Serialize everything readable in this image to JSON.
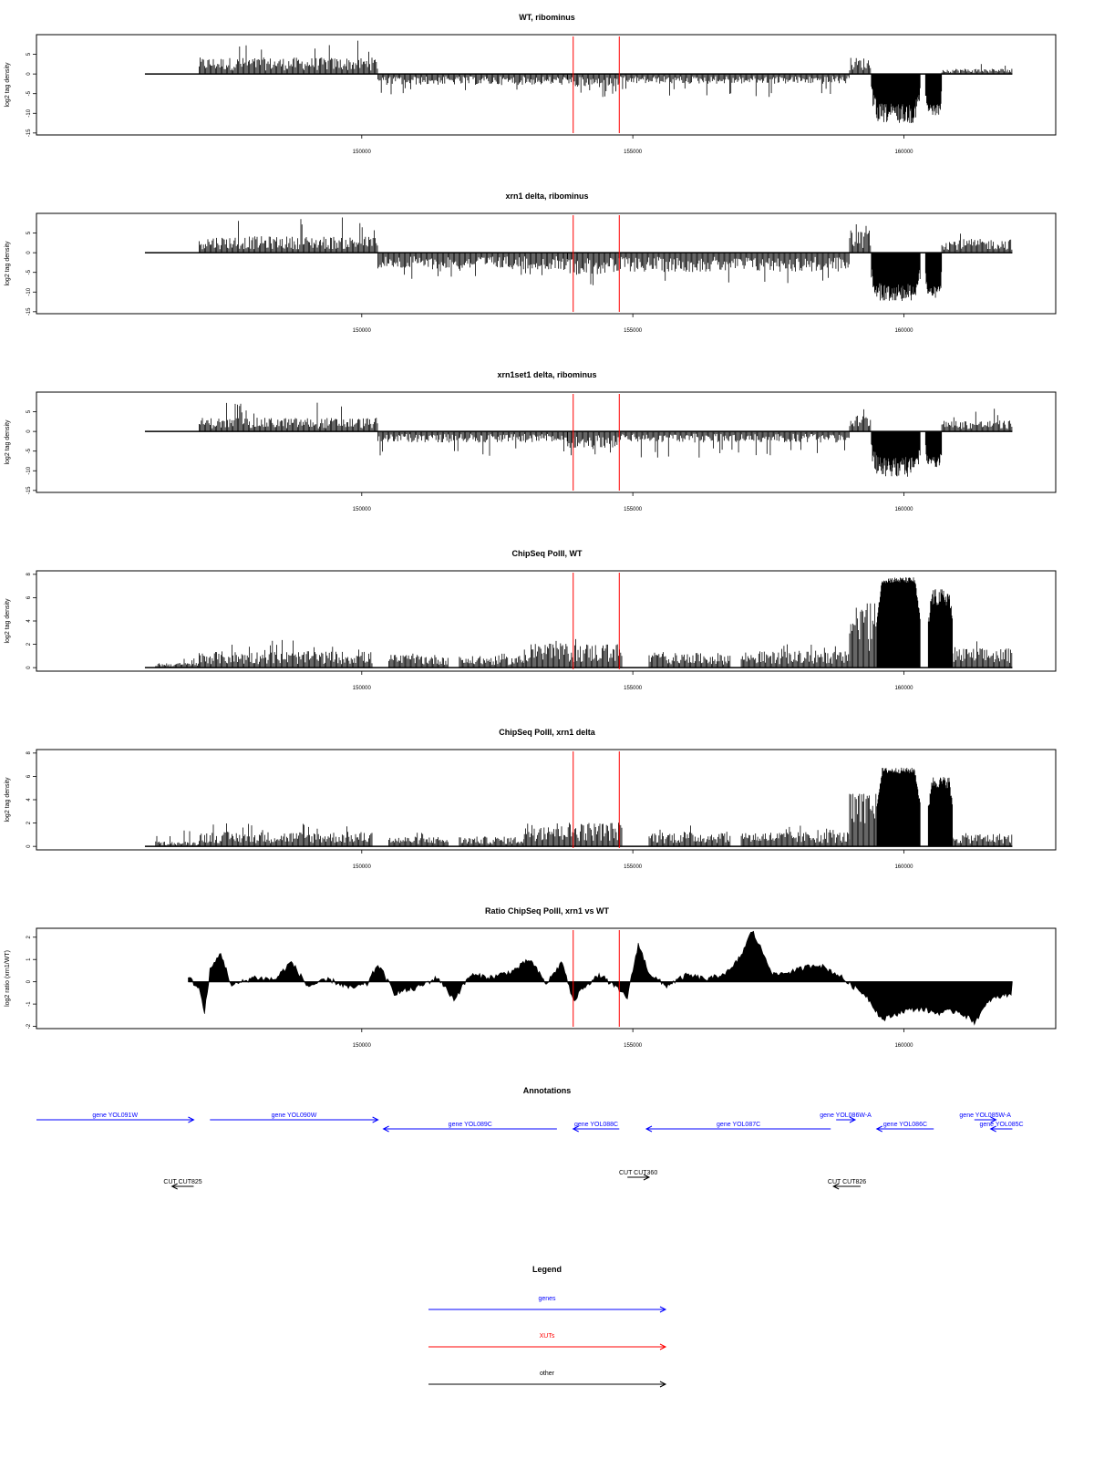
{
  "colors": {
    "bars": "#000000",
    "marker": "#ff0000",
    "genes": "#0000ff",
    "xuts": "#ff0000",
    "other": "#000000"
  },
  "chart_data": [
    {
      "type": "bar",
      "title": "WT, ribominus",
      "ylabel": "log2 tag density",
      "xlim": [
        144000,
        162800
      ],
      "ylim": [
        -15.5,
        10
      ],
      "yticks": [
        -15,
        -10,
        -5,
        0,
        5
      ],
      "xticks": [
        150000,
        155000,
        160000
      ],
      "marker_lines_x": [
        153900,
        154750
      ],
      "segments": [
        {
          "x_start": 147000,
          "x_end": 150300,
          "sign": 1,
          "mean": 3.0,
          "max": 8.5
        },
        {
          "x_start": 150300,
          "x_end": 153800,
          "sign": -1,
          "mean": 2.0,
          "max": 5.5
        },
        {
          "x_start": 153800,
          "x_end": 154750,
          "sign": -1,
          "mean": 2.5,
          "max": 6.0
        },
        {
          "x_start": 154750,
          "x_end": 159000,
          "sign": -1,
          "mean": 1.8,
          "max": 6.0
        },
        {
          "x_start": 159000,
          "x_end": 159400,
          "sign": 1,
          "mean": 3.0,
          "max": 5.5
        },
        {
          "x_start": 159400,
          "x_end": 160300,
          "sign": -1,
          "mean": 10.0,
          "max": 15.0
        },
        {
          "x_start": 160400,
          "x_end": 160700,
          "sign": -1,
          "mean": 9.0,
          "max": 12.0
        },
        {
          "x_start": 160700,
          "x_end": 162000,
          "sign": 1,
          "mean": 1.0,
          "max": 3.5
        }
      ]
    },
    {
      "type": "bar",
      "title": "xrn1 delta, ribominus",
      "ylabel": "log2 tag density",
      "xlim": [
        144000,
        162800
      ],
      "ylim": [
        -15.5,
        10
      ],
      "yticks": [
        -15,
        -10,
        -5,
        0,
        5
      ],
      "xticks": [
        150000,
        155000,
        160000
      ],
      "marker_lines_x": [
        153900,
        154750
      ],
      "segments": [
        {
          "x_start": 147000,
          "x_end": 150300,
          "sign": 1,
          "mean": 3.0,
          "max": 9.0
        },
        {
          "x_start": 150300,
          "x_end": 153800,
          "sign": -1,
          "mean": 3.0,
          "max": 7.0
        },
        {
          "x_start": 153800,
          "x_end": 154750,
          "sign": -1,
          "mean": 4.0,
          "max": 9.0
        },
        {
          "x_start": 154750,
          "x_end": 159000,
          "sign": -1,
          "mean": 3.5,
          "max": 8.0
        },
        {
          "x_start": 159000,
          "x_end": 159400,
          "sign": 1,
          "mean": 4.0,
          "max": 8.0
        },
        {
          "x_start": 159400,
          "x_end": 160300,
          "sign": -1,
          "mean": 10.0,
          "max": 14.5
        },
        {
          "x_start": 160400,
          "x_end": 160700,
          "sign": -1,
          "mean": 10.0,
          "max": 13.0
        },
        {
          "x_start": 160700,
          "x_end": 162000,
          "sign": 1,
          "mean": 2.5,
          "max": 6.0
        }
      ]
    },
    {
      "type": "bar",
      "title": "xrn1set1 delta, ribominus",
      "ylabel": "log2 tag density",
      "xlim": [
        144000,
        162800
      ],
      "ylim": [
        -15.5,
        10
      ],
      "yticks": [
        -15,
        -10,
        -5,
        0,
        5
      ],
      "xticks": [
        150000,
        155000,
        160000
      ],
      "marker_lines_x": [
        153900,
        154750
      ],
      "segments": [
        {
          "x_start": 147000,
          "x_end": 150300,
          "sign": 1,
          "mean": 2.5,
          "max": 7.5
        },
        {
          "x_start": 150300,
          "x_end": 153800,
          "sign": -1,
          "mean": 2.0,
          "max": 7.0
        },
        {
          "x_start": 153800,
          "x_end": 154750,
          "sign": -1,
          "mean": 3.0,
          "max": 7.0
        },
        {
          "x_start": 154750,
          "x_end": 159000,
          "sign": -1,
          "mean": 2.0,
          "max": 7.0
        },
        {
          "x_start": 159000,
          "x_end": 159400,
          "sign": 1,
          "mean": 3.0,
          "max": 6.5
        },
        {
          "x_start": 159400,
          "x_end": 160300,
          "sign": -1,
          "mean": 9.0,
          "max": 14.0
        },
        {
          "x_start": 160400,
          "x_end": 160700,
          "sign": -1,
          "mean": 8.0,
          "max": 11.0
        },
        {
          "x_start": 160700,
          "x_end": 162000,
          "sign": 1,
          "mean": 2.0,
          "max": 6.0
        }
      ]
    },
    {
      "type": "bar",
      "title": "ChipSeq PolII, WT",
      "ylabel": "log2 tag density",
      "xlim": [
        144000,
        162800
      ],
      "ylim": [
        -0.3,
        8.3
      ],
      "yticks": [
        0,
        2,
        4,
        6,
        8
      ],
      "xticks": [
        150000,
        155000,
        160000
      ],
      "marker_lines_x": [
        153900,
        154750
      ],
      "segments": [
        {
          "x_start": 146200,
          "x_end": 147000,
          "sign": 1,
          "mean": 0.3,
          "max": 1.0
        },
        {
          "x_start": 147000,
          "x_end": 150200,
          "sign": 1,
          "mean": 1.0,
          "max": 2.5
        },
        {
          "x_start": 150500,
          "x_end": 151600,
          "sign": 1,
          "mean": 0.8,
          "max": 1.2
        },
        {
          "x_start": 151800,
          "x_end": 153000,
          "sign": 1,
          "mean": 0.7,
          "max": 1.2
        },
        {
          "x_start": 153000,
          "x_end": 154800,
          "sign": 1,
          "mean": 1.5,
          "max": 2.5
        },
        {
          "x_start": 155300,
          "x_end": 156800,
          "sign": 1,
          "mean": 0.9,
          "max": 1.5
        },
        {
          "x_start": 157000,
          "x_end": 159000,
          "sign": 1,
          "mean": 1.0,
          "max": 2.0
        },
        {
          "x_start": 159000,
          "x_end": 159500,
          "sign": 1,
          "mean": 4.5,
          "max": 5.5
        },
        {
          "x_start": 159500,
          "x_end": 160300,
          "sign": 1,
          "mean": 7.5,
          "max": 8.0
        },
        {
          "x_start": 160450,
          "x_end": 160900,
          "sign": 1,
          "mean": 6.0,
          "max": 7.5
        },
        {
          "x_start": 160900,
          "x_end": 162000,
          "sign": 1,
          "mean": 1.2,
          "max": 2.5
        }
      ]
    },
    {
      "type": "bar",
      "title": "ChipSeq PolII, xrn1 delta",
      "ylabel": "log2 tag density",
      "xlim": [
        144000,
        162800
      ],
      "ylim": [
        -0.3,
        8.3
      ],
      "yticks": [
        0,
        2,
        4,
        6,
        8
      ],
      "xticks": [
        150000,
        155000,
        160000
      ],
      "marker_lines_x": [
        153900,
        154750
      ],
      "segments": [
        {
          "x_start": 146200,
          "x_end": 147000,
          "sign": 1,
          "mean": 0.3,
          "max": 1.4
        },
        {
          "x_start": 147000,
          "x_end": 150200,
          "sign": 1,
          "mean": 0.9,
          "max": 2.0
        },
        {
          "x_start": 150500,
          "x_end": 151600,
          "sign": 1,
          "mean": 0.6,
          "max": 1.2
        },
        {
          "x_start": 151800,
          "x_end": 153000,
          "sign": 1,
          "mean": 0.6,
          "max": 1.2
        },
        {
          "x_start": 153000,
          "x_end": 154800,
          "sign": 1,
          "mean": 1.5,
          "max": 2.5
        },
        {
          "x_start": 155300,
          "x_end": 156800,
          "sign": 1,
          "mean": 0.9,
          "max": 1.8
        },
        {
          "x_start": 157000,
          "x_end": 159000,
          "sign": 1,
          "mean": 0.9,
          "max": 1.8
        },
        {
          "x_start": 159000,
          "x_end": 159500,
          "sign": 1,
          "mean": 3.5,
          "max": 4.5
        },
        {
          "x_start": 159500,
          "x_end": 160300,
          "sign": 1,
          "mean": 6.5,
          "max": 7.0
        },
        {
          "x_start": 160450,
          "x_end": 160900,
          "sign": 1,
          "mean": 5.5,
          "max": 6.5
        },
        {
          "x_start": 160900,
          "x_end": 162000,
          "sign": 1,
          "mean": 0.8,
          "max": 1.8
        }
      ]
    },
    {
      "type": "area",
      "title": "Ratio ChipSeq PolII, xrn1 vs WT",
      "ylabel": "log2 ratio (xrn1/WT)",
      "xlim": [
        144000,
        162800
      ],
      "ylim": [
        -2.1,
        2.4
      ],
      "yticks": [
        -2,
        -1,
        0,
        1,
        2
      ],
      "xticks": [
        150000,
        155000,
        160000
      ],
      "marker_lines_x": [
        153900,
        154750
      ],
      "x": [
        146800,
        147000,
        147100,
        147200,
        147400,
        147600,
        148000,
        148400,
        148700,
        149000,
        149400,
        149800,
        150100,
        150300,
        150600,
        151000,
        151400,
        151700,
        152000,
        152400,
        152800,
        153100,
        153400,
        153700,
        153900,
        154100,
        154400,
        154700,
        154900,
        155100,
        155300,
        155600,
        156000,
        156400,
        156800,
        157000,
        157200,
        157600,
        158000,
        158400,
        158800,
        159000,
        159300,
        159600,
        160000,
        160300,
        160600,
        161000,
        161300,
        161600,
        162000
      ],
      "y": [
        0.2,
        -0.3,
        -1.4,
        0.5,
        1.3,
        -0.2,
        0.2,
        0.1,
        0.9,
        -0.2,
        0.1,
        -0.3,
        -0.1,
        0.8,
        -0.5,
        -0.3,
        0.2,
        -0.8,
        0.3,
        0.2,
        0.5,
        1.0,
        -0.1,
        0.9,
        -0.9,
        -0.2,
        0.3,
        -0.3,
        -0.7,
        1.7,
        0.4,
        -0.2,
        0.3,
        0.1,
        0.5,
        1.2,
        2.3,
        0.3,
        0.5,
        0.8,
        0.3,
        -0.1,
        -0.6,
        -1.7,
        -1.3,
        -1.2,
        -1.4,
        -1.3,
        -1.8,
        -0.8,
        -0.5
      ]
    }
  ],
  "annotations": {
    "title": "Annotations",
    "genes": [
      {
        "label": "gene YOL091W",
        "x_start": 144000,
        "x_end": 146900,
        "direction": "forward",
        "row": 1
      },
      {
        "label": "gene YOL090W",
        "x_start": 147200,
        "x_end": 150300,
        "direction": "forward",
        "row": 1
      },
      {
        "label": "gene YOL089C",
        "x_start": 150400,
        "x_end": 153600,
        "direction": "reverse",
        "row": 2
      },
      {
        "label": "gene YOL088C",
        "x_start": 153900,
        "x_end": 154750,
        "direction": "reverse",
        "row": 2
      },
      {
        "label": "gene YOL087C",
        "x_start": 155250,
        "x_end": 158650,
        "direction": "reverse",
        "row": 2
      },
      {
        "label": "gene YOL086W-A",
        "x_start": 158750,
        "x_end": 159100,
        "direction": "forward",
        "row": 1
      },
      {
        "label": "gene YOL086C",
        "x_start": 159500,
        "x_end": 160550,
        "direction": "reverse",
        "row": 2
      },
      {
        "label": "gene YOL085W-A",
        "x_start": 161300,
        "x_end": 161700,
        "direction": "forward",
        "row": 1
      },
      {
        "label": "gene YOL085C",
        "x_start": 161600,
        "x_end": 162000,
        "direction": "reverse",
        "row": 2
      }
    ],
    "cuts": [
      {
        "label": "CUT CUT825",
        "x_start": 146500,
        "x_end": 146900,
        "direction": "reverse"
      },
      {
        "label": "CUT CUT360",
        "x_start": 154900,
        "x_end": 155300,
        "direction": "forward"
      },
      {
        "label": "CUT CUT826",
        "x_start": 158700,
        "x_end": 159200,
        "direction": "reverse"
      }
    ]
  },
  "legend": {
    "title": "Legend",
    "items": [
      {
        "label": "genes",
        "color": "#0000ff"
      },
      {
        "label": "XUTs",
        "color": "#ff0000"
      },
      {
        "label": "other",
        "color": "#000000"
      }
    ]
  }
}
